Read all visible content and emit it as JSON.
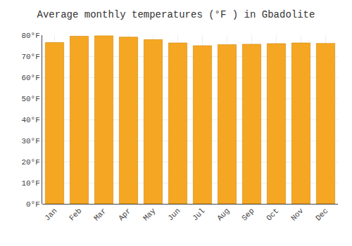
{
  "chart_data": {
    "type": "bar",
    "title": "Average monthly temperatures (°F ) in Gbadolite",
    "categories": [
      "Jan",
      "Feb",
      "Mar",
      "Apr",
      "May",
      "Jun",
      "Jul",
      "Aug",
      "Sep",
      "Oct",
      "Nov",
      "Dec"
    ],
    "values": [
      76.5,
      79.5,
      79.7,
      79.1,
      77.9,
      76.3,
      75.0,
      75.5,
      75.7,
      76.0,
      76.3,
      76.1
    ],
    "color": "#F5A623",
    "ylim": [
      0,
      80
    ],
    "yticks": [
      {
        "value": 0,
        "label": "0°F"
      },
      {
        "value": 10,
        "label": "10°F"
      },
      {
        "value": 20,
        "label": "20°F"
      },
      {
        "value": 30,
        "label": "30°F"
      },
      {
        "value": 40,
        "label": "40°F"
      },
      {
        "value": 50,
        "label": "50°F"
      },
      {
        "value": 60,
        "label": "60°F"
      },
      {
        "value": 70,
        "label": "70°F"
      },
      {
        "value": 80,
        "label": "80°F"
      }
    ],
    "grid": true
  }
}
